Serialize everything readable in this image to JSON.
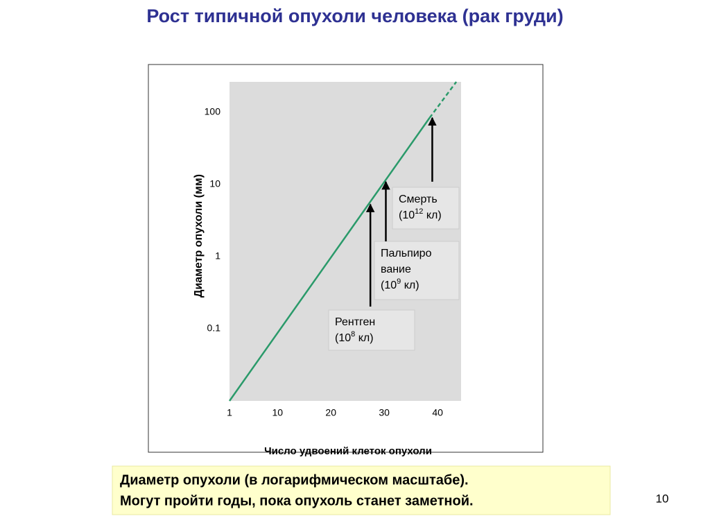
{
  "slide": {
    "title": "Рост типичной опухоли человека (рак груди)",
    "caption": [
      "Диаметр опухоли (в логарифмическом масштабе).",
      "Могут пройти годы, пока опухоль станет заметной."
    ],
    "page_number": "10"
  },
  "chart_data": {
    "type": "line",
    "xlabel": "Число удвоений клеток опухоли",
    "ylabel": "Диаметр опухоли (мм)",
    "xlim": [
      1,
      44.4
    ],
    "xticks": [
      1,
      10,
      20,
      30,
      40
    ],
    "ylim": [
      0.01,
      265
    ],
    "yticks": [
      0.1,
      1,
      10,
      100
    ],
    "yscale": "log",
    "grid": false,
    "series": [
      {
        "color": "#2a9a6a",
        "dashed": false,
        "x": [
          1,
          38.5
        ],
        "values": [
          0.01,
          84
        ]
      },
      {
        "color": "#2a9a6a",
        "dashed": true,
        "x": [
          38.5,
          43.5
        ],
        "values": [
          84,
          265
        ]
      }
    ],
    "annotations": [
      {
        "lines": [
          "Рентген"
        ],
        "count_prefix": "(10",
        "exponent": "8",
        "count_suffix": " кл)",
        "x": 27.4,
        "y": 5.3
      },
      {
        "lines": [
          "Пальпиро",
          "вание"
        ],
        "count_prefix": "(10",
        "exponent": "9",
        "count_suffix": " кл)",
        "x": 30.3,
        "y": 10.9
      },
      {
        "lines": [
          "Смерть"
        ],
        "count_prefix": "(10",
        "exponent": "12",
        "count_suffix": " кл)",
        "x": 39,
        "y": 84
      }
    ]
  }
}
